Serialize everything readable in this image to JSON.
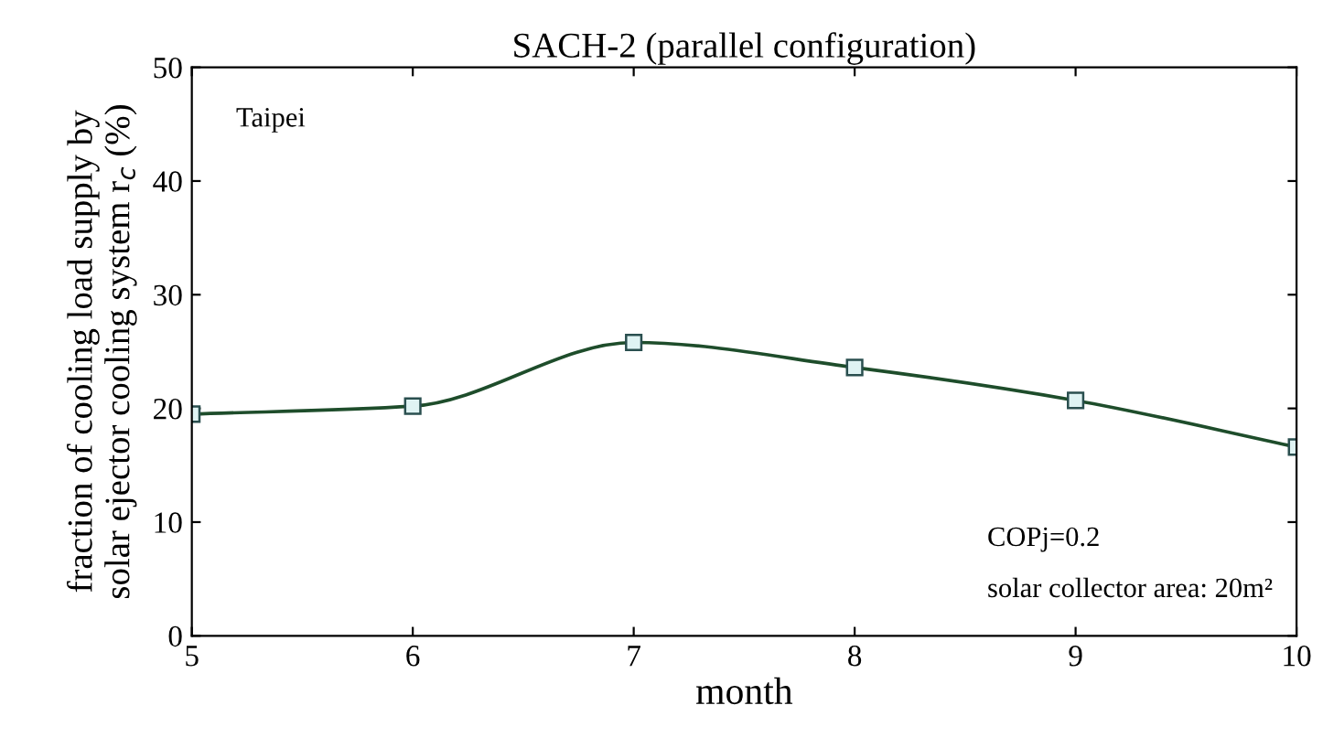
{
  "chart_data": {
    "type": "line",
    "title": "SACH-2 (parallel configuration)",
    "xlabel": "month",
    "ylabel": "fraction of cooling load supply by\nsolar ejector cooling system r$_{c}$ (%)",
    "x": [
      5,
      6,
      7,
      8,
      9,
      10
    ],
    "series": [
      {
        "color": "#1e4d2b",
        "values": [
          19.5,
          20.2,
          25.8,
          23.6,
          20.7,
          16.6
        ]
      }
    ],
    "xlim": [
      5,
      10
    ],
    "xticks": [
      5,
      6,
      7,
      8,
      9,
      10
    ],
    "ylim": [
      0,
      50
    ],
    "yticks": [
      0,
      10,
      20,
      30,
      40,
      50
    ],
    "marker": "square",
    "line_style": "solid",
    "grid": false,
    "annotations": [
      "Taipei",
      "COPj=0.2",
      "solar collector area: 20m²"
    ]
  }
}
